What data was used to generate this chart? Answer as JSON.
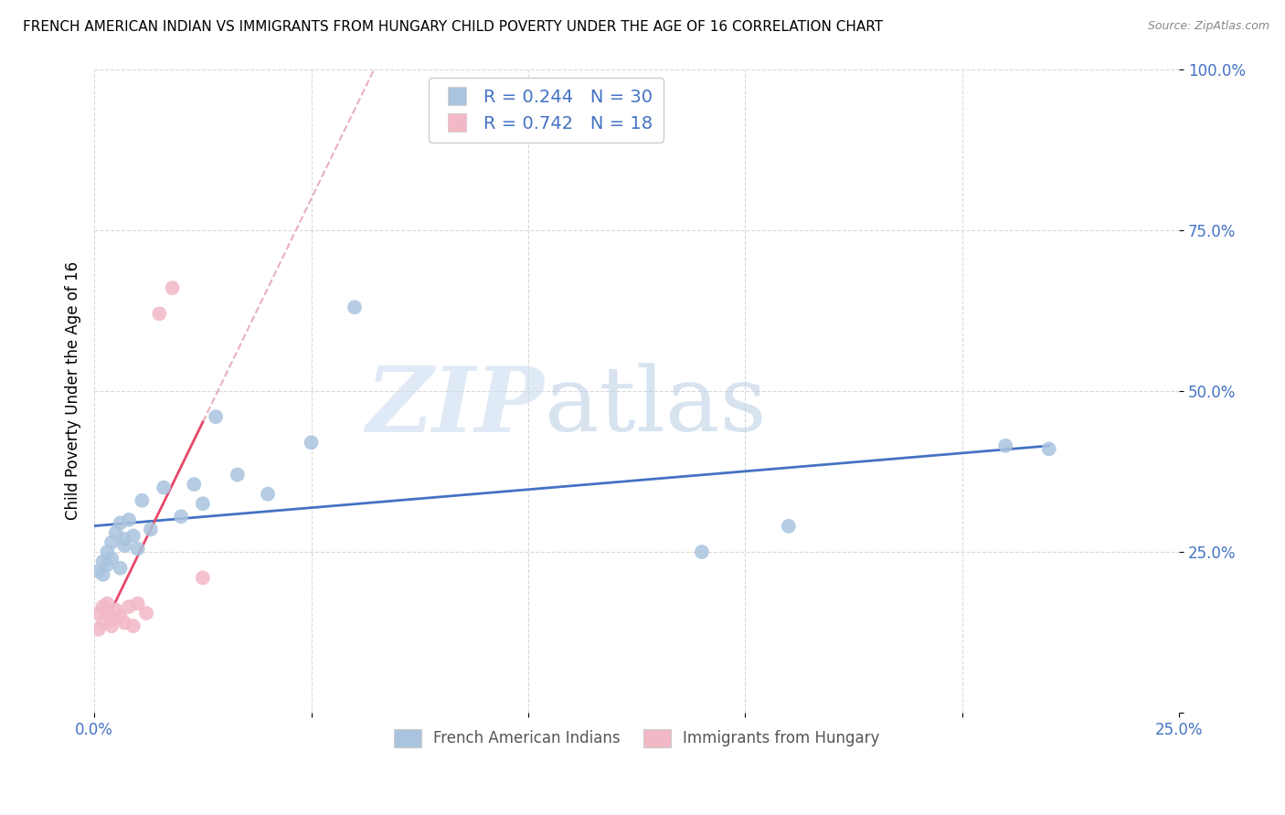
{
  "title": "FRENCH AMERICAN INDIAN VS IMMIGRANTS FROM HUNGARY CHILD POVERTY UNDER THE AGE OF 16 CORRELATION CHART",
  "source": "Source: ZipAtlas.com",
  "ylabel": "Child Poverty Under the Age of 16",
  "xlim": [
    0.0,
    0.25
  ],
  "ylim": [
    0.0,
    1.0
  ],
  "xticks": [
    0.0,
    0.05,
    0.1,
    0.15,
    0.2,
    0.25
  ],
  "xticklabels": [
    "0.0%",
    "",
    "",
    "",
    "",
    "25.0%"
  ],
  "yticks": [
    0.0,
    0.25,
    0.5,
    0.75,
    1.0
  ],
  "yticklabels": [
    "",
    "25.0%",
    "50.0%",
    "75.0%",
    "100.0%"
  ],
  "blue_R": 0.244,
  "blue_N": 30,
  "pink_R": 0.742,
  "pink_N": 18,
  "blue_scatter_x": [
    0.001,
    0.002,
    0.002,
    0.003,
    0.003,
    0.004,
    0.004,
    0.005,
    0.006,
    0.006,
    0.007,
    0.007,
    0.008,
    0.009,
    0.01,
    0.011,
    0.013,
    0.016,
    0.02,
    0.023,
    0.025,
    0.028,
    0.033,
    0.04,
    0.05,
    0.06,
    0.16,
    0.21,
    0.22,
    0.14
  ],
  "blue_scatter_y": [
    0.22,
    0.235,
    0.215,
    0.25,
    0.23,
    0.265,
    0.24,
    0.28,
    0.225,
    0.295,
    0.26,
    0.27,
    0.3,
    0.275,
    0.255,
    0.33,
    0.285,
    0.35,
    0.305,
    0.355,
    0.325,
    0.46,
    0.37,
    0.34,
    0.42,
    0.63,
    0.29,
    0.415,
    0.41,
    0.25
  ],
  "pink_scatter_x": [
    0.001,
    0.001,
    0.002,
    0.002,
    0.003,
    0.003,
    0.004,
    0.004,
    0.005,
    0.006,
    0.007,
    0.008,
    0.009,
    0.01,
    0.012,
    0.015,
    0.018,
    0.025
  ],
  "pink_scatter_y": [
    0.155,
    0.13,
    0.165,
    0.14,
    0.155,
    0.17,
    0.145,
    0.135,
    0.16,
    0.15,
    0.14,
    0.165,
    0.135,
    0.17,
    0.155,
    0.62,
    0.66,
    0.21
  ],
  "blue_color": "#aac4df",
  "pink_color": "#f2b8c6",
  "blue_line_color": "#4472c4",
  "pink_line_color": "#e8476a",
  "pink_dash_color": "#e8b0bb",
  "watermark_zip": "ZIP",
  "watermark_atlas": "atlas",
  "background_color": "#ffffff",
  "grid_color": "#d0d0d0",
  "tick_color": "#4472c4",
  "legend_r_color": "#4472c4",
  "legend_n_color": "#e84040"
}
